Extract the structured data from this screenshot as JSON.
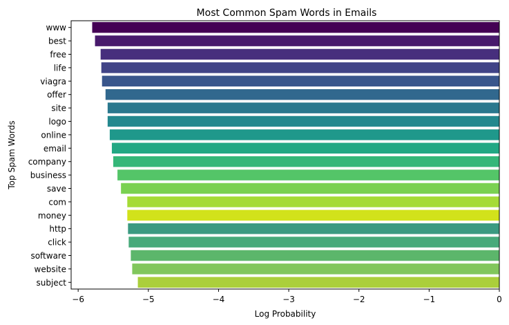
{
  "chart_data": {
    "type": "bar",
    "orientation": "horizontal",
    "title": "Most Common Spam Words in Emails",
    "xlabel": "Log Probability",
    "ylabel": "Top Spam Words",
    "xlim": [
      -6.1,
      0
    ],
    "xticks": [
      -6,
      -5,
      -4,
      -3,
      -2,
      -1,
      0
    ],
    "xtick_labels": [
      "−6",
      "−5",
      "−4",
      "−3",
      "−2",
      "−1",
      "0"
    ],
    "grid": false,
    "legend": "none",
    "categories": [
      "www",
      "best",
      "free",
      "life",
      "viagra",
      "offer",
      "site",
      "logo",
      "online",
      "email",
      "company",
      "business",
      "save",
      "com",
      "money",
      "http",
      "click",
      "software",
      "website",
      "subject"
    ],
    "values": [
      -5.8,
      -5.76,
      -5.68,
      -5.67,
      -5.66,
      -5.61,
      -5.58,
      -5.58,
      -5.55,
      -5.52,
      -5.5,
      -5.44,
      -5.39,
      -5.3,
      -5.3,
      -5.29,
      -5.28,
      -5.25,
      -5.23,
      -5.15
    ],
    "colors": [
      "#440154",
      "#481a6c",
      "#472f7d",
      "#414487",
      "#39568c",
      "#31688e",
      "#2a788e",
      "#23888e",
      "#1f988b",
      "#22a884",
      "#35b779",
      "#54c568",
      "#7ad151",
      "#a5db36",
      "#d2e21b",
      "#3b9a81",
      "#47aa7a",
      "#5cb66b",
      "#81c65c",
      "#abcf3b"
    ]
  }
}
